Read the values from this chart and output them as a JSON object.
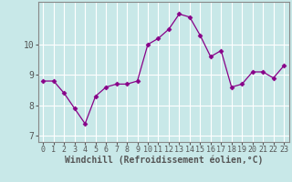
{
  "x": [
    0,
    1,
    2,
    3,
    4,
    5,
    6,
    7,
    8,
    9,
    10,
    11,
    12,
    13,
    14,
    15,
    16,
    17,
    18,
    19,
    20,
    21,
    22,
    23
  ],
  "y": [
    8.8,
    8.8,
    8.4,
    7.9,
    7.4,
    8.3,
    8.6,
    8.7,
    8.7,
    8.8,
    10.0,
    10.2,
    10.5,
    11.0,
    10.9,
    10.3,
    9.6,
    9.8,
    8.6,
    8.7,
    9.1,
    9.1,
    8.9,
    9.3
  ],
  "line_color": "#880088",
  "marker": "D",
  "marker_size": 2.5,
  "bg_color": "#c8e8e8",
  "grid_color": "#b0d8d8",
  "xlabel": "Windchill (Refroidissement éolien,°C)",
  "xlabel_fontsize": 7,
  "ylim": [
    6.8,
    11.4
  ],
  "yticks": [
    7,
    8,
    9,
    10
  ],
  "xticks": [
    0,
    1,
    2,
    3,
    4,
    5,
    6,
    7,
    8,
    9,
    10,
    11,
    12,
    13,
    14,
    15,
    16,
    17,
    18,
    19,
    20,
    21,
    22,
    23
  ],
  "tick_fontsize": 6,
  "axis_color": "#555555",
  "spine_color": "#888888"
}
